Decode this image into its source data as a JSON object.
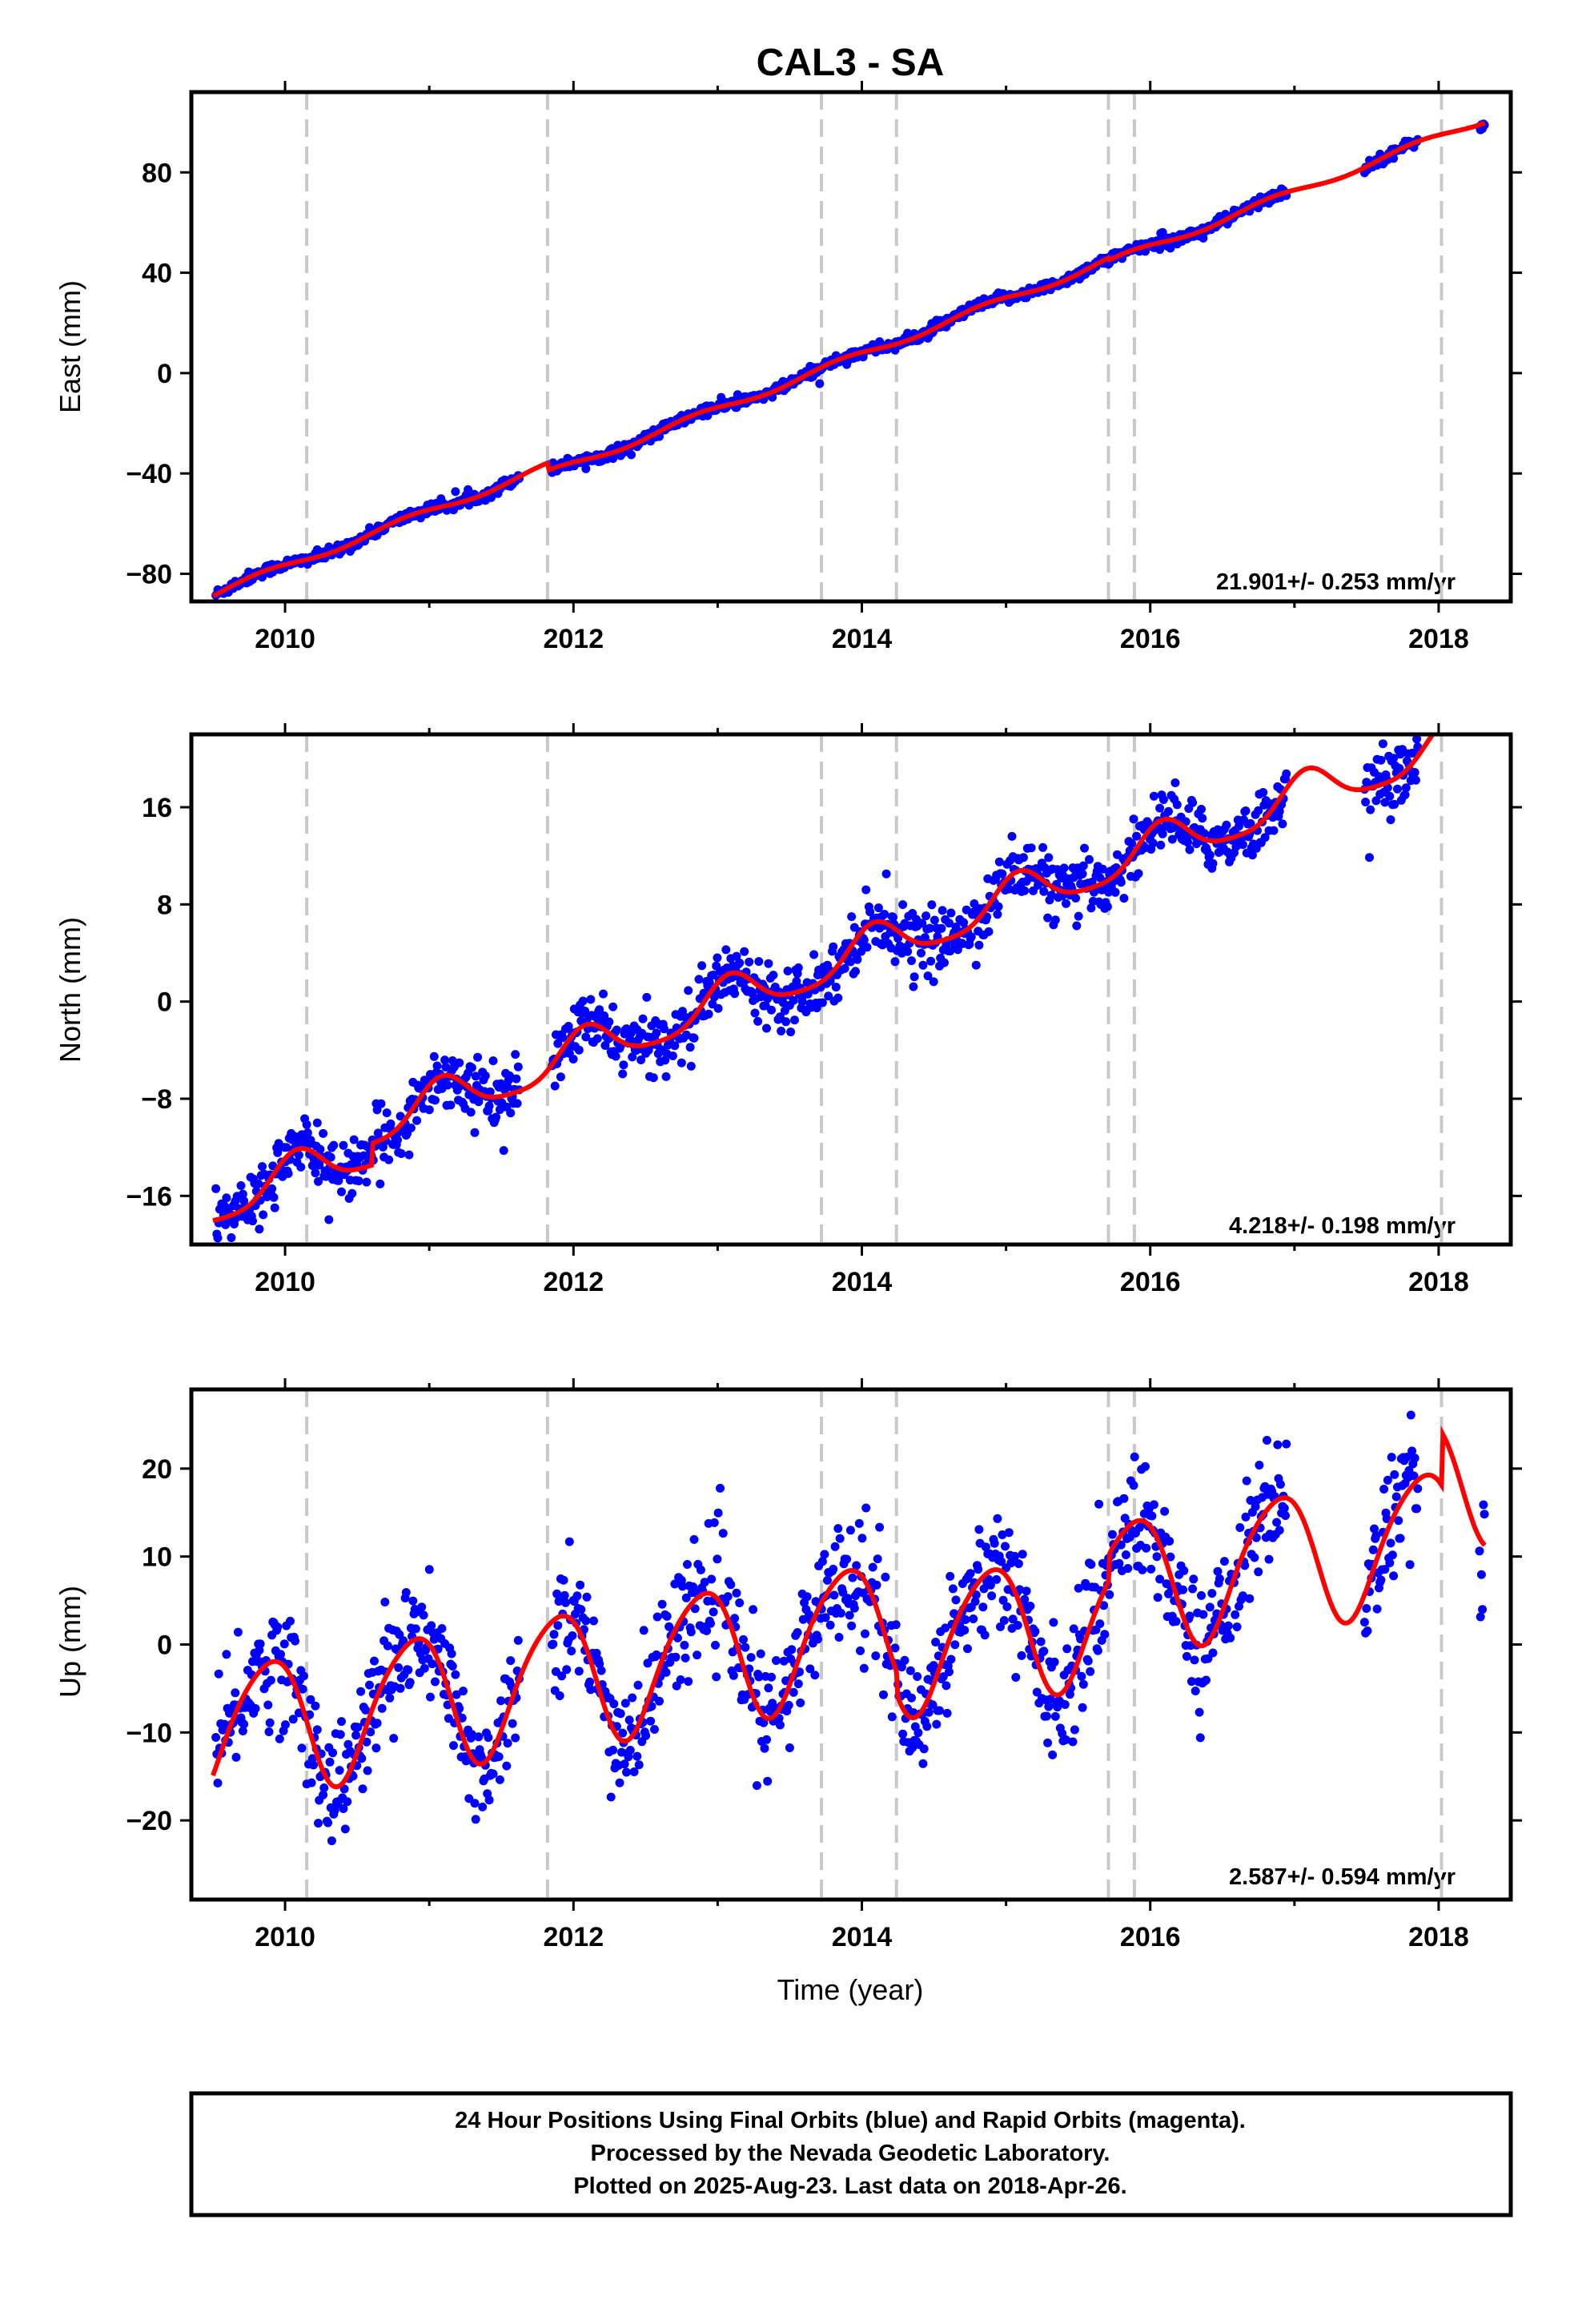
{
  "title": "CAL3 - SA",
  "footer": {
    "line1": "24 Hour Positions Using Final Orbits (blue) and Rapid Orbits (magenta).",
    "line2": "Processed by the Nevada Geodetic Laboratory.",
    "line3": "Plotted on 2025-Aug-23. Last data on 2018-Apr-26."
  },
  "colors": {
    "points": "#0000ff",
    "fit": "#ff0000",
    "events": "#c8c8c8",
    "frame": "#000000"
  },
  "chart_data": [
    {
      "type": "scatter",
      "component": "east",
      "ylabel": "East (mm)",
      "xlabel": "",
      "xlim": [
        2009.35,
        2018.5
      ],
      "ylim": [
        -91,
        112
      ],
      "xticks": [
        2010,
        2012,
        2014,
        2016,
        2018
      ],
      "yticks": [
        -80,
        -40,
        0,
        40,
        80
      ],
      "rate_label": "21.901+/- 0.253 mm/yr",
      "event_lines": [
        2010.15,
        2011.82,
        2013.72,
        2014.24,
        2015.71,
        2015.89,
        2018.02
      ],
      "data_gaps": [
        [
          2011.63,
          2011.85
        ],
        [
          2016.95,
          2017.48
        ],
        [
          2017.86,
          2018.28
        ]
      ],
      "fit": {
        "rate": 21.9,
        "offset": 5.0,
        "ref_year": 2013.75,
        "annual": [
          -1.2,
          0.8
        ],
        "semiannual": [
          0.0,
          0.0
        ],
        "steps": [
          [
            2011.82,
            -3.0
          ],
          [
            2015.71,
            -1.0
          ]
        ]
      },
      "points": {
        "step": 0.0067,
        "noise": 1.1,
        "start": 2009.52,
        "end": 2018.32
      }
    },
    {
      "type": "scatter",
      "component": "north",
      "ylabel": "North (mm)",
      "xlabel": "",
      "xlim": [
        2009.35,
        2018.5
      ],
      "ylim": [
        -20,
        22
      ],
      "xticks": [
        2010,
        2012,
        2014,
        2016,
        2018
      ],
      "yticks": [
        -16,
        -8,
        0,
        8,
        16
      ],
      "rate_label": "4.218+/- 0.198 mm/yr",
      "event_lines": [
        2010.15,
        2011.82,
        2013.72,
        2014.24,
        2015.71,
        2015.89,
        2018.02
      ],
      "data_gaps": [
        [
          2011.63,
          2011.85
        ],
        [
          2016.95,
          2017.48
        ],
        [
          2017.86,
          2018.28
        ]
      ],
      "fit": {
        "rate": 4.218,
        "offset": 1.2,
        "ref_year": 2013.75,
        "annual": [
          0.9,
          1.5
        ],
        "semiannual": [
          0.3,
          0.2
        ],
        "steps": [
          [
            2010.6,
            1.8
          ],
          [
            2018.02,
            1.0
          ]
        ]
      },
      "points": {
        "step": 0.0067,
        "noise": 1.2,
        "start": 2009.52,
        "end": 2018.32
      }
    },
    {
      "type": "scatter",
      "component": "up",
      "ylabel": "Up (mm)",
      "xlabel": "Time (year)",
      "xlim": [
        2009.35,
        2018.5
      ],
      "ylim": [
        -29,
        29
      ],
      "xticks": [
        2010,
        2012,
        2014,
        2016,
        2018
      ],
      "yticks": [
        -20,
        -10,
        0,
        10,
        20
      ],
      "rate_label": "2.587+/- 0.594 mm/yr",
      "event_lines": [
        2010.15,
        2011.82,
        2013.72,
        2014.24,
        2015.71,
        2015.89,
        2018.02
      ],
      "data_gaps": [
        [
          2011.63,
          2011.85
        ],
        [
          2016.95,
          2017.48
        ],
        [
          2017.86,
          2018.28
        ]
      ],
      "fit": {
        "rate": 2.587,
        "offset": 1.0,
        "ref_year": 2013.75,
        "annual": [
          -5.2,
          5.5
        ],
        "semiannual": [
          0.8,
          0.6
        ],
        "steps": [
          [
            2014.24,
            -2.5
          ],
          [
            2015.71,
            3.0
          ],
          [
            2018.02,
            6.0
          ]
        ]
      },
      "points": {
        "step": 0.0067,
        "noise": 3.4,
        "start": 2009.52,
        "end": 2018.32
      }
    }
  ]
}
